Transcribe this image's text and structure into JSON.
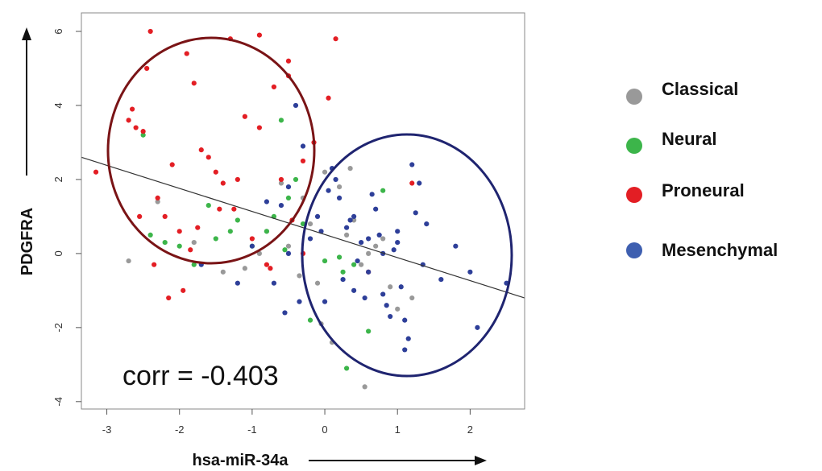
{
  "chart_data": {
    "type": "scatter",
    "xlabel": "hsa-miR-34a",
    "ylabel": "PDGFRA",
    "xlim": [
      -3.35,
      2.75
    ],
    "ylim": [
      -4.2,
      6.5
    ],
    "xticks": [
      -3,
      -2,
      -1,
      0,
      1,
      2
    ],
    "yticks": [
      -4,
      -2,
      0,
      2,
      4,
      6
    ],
    "grid": false,
    "legend_position": "right",
    "annotation": "corr = -0.403",
    "correlation": -0.403,
    "colors": {
      "Classical": "#999999",
      "Neural": "#3cb54a",
      "Proneural": "#e31e24",
      "Mesenchymal": "#2e3f99",
      "trend_line": "#333333",
      "circle_left": "#7a1416",
      "circle_right": "#1f2470"
    },
    "trend_line": {
      "x": [
        -3.35,
        2.75
      ],
      "y": [
        2.6,
        -1.2
      ]
    },
    "series": [
      {
        "name": "Classical",
        "x": [
          -2.3,
          -2.7,
          -1.8,
          -1.4,
          -0.9,
          -0.5,
          -0.3,
          -0.2,
          0.0,
          0.2,
          0.4,
          0.5,
          -0.1,
          0.3,
          0.6,
          0.8,
          1.0,
          1.2,
          -0.6,
          -0.8,
          0.1,
          0.7,
          -1.1,
          0.55,
          -0.05,
          0.9,
          0.35,
          -0.35
        ],
        "y": [
          1.4,
          -0.2,
          0.3,
          -0.5,
          0.0,
          0.2,
          1.5,
          0.8,
          2.2,
          1.8,
          0.9,
          -0.3,
          -0.8,
          0.5,
          0.0,
          0.4,
          -1.5,
          -1.2,
          1.9,
          0.6,
          -2.4,
          0.2,
          -0.4,
          -3.6,
          -1.9,
          -0.9,
          2.3,
          -0.6
        ]
      },
      {
        "name": "Neural",
        "x": [
          -2.4,
          -2.2,
          -2.0,
          -1.8,
          -1.5,
          -1.3,
          -1.2,
          -1.0,
          -0.8,
          -0.7,
          -0.5,
          -0.4,
          -0.3,
          -0.2,
          0.0,
          0.2,
          0.4,
          0.6,
          0.8,
          -2.5,
          -0.6,
          0.3,
          -1.6,
          -0.55,
          0.25
        ],
        "y": [
          0.5,
          0.3,
          0.2,
          -0.3,
          0.4,
          0.6,
          0.9,
          0.2,
          0.6,
          1.0,
          1.5,
          2.0,
          0.8,
          -1.8,
          -0.2,
          -0.1,
          -0.3,
          -2.1,
          1.7,
          3.2,
          3.6,
          -3.1,
          1.3,
          0.1,
          -0.5
        ]
      },
      {
        "name": "Proneural",
        "x": [
          -2.7,
          -2.6,
          -2.5,
          -2.3,
          -2.1,
          -1.9,
          -1.7,
          -1.5,
          -1.3,
          -1.1,
          -0.9,
          -0.7,
          -0.5,
          -0.3,
          -2.65,
          -2.4,
          -2.2,
          -2.0,
          -1.8,
          -1.6,
          -1.4,
          -1.2,
          -1.0,
          -0.8,
          -0.6,
          -2.45,
          -1.75,
          -1.25,
          -0.9,
          -0.5,
          -0.3,
          -0.15,
          0.05,
          0.15,
          -2.55,
          -2.15,
          -1.95,
          -0.75,
          -0.45,
          -1.45,
          -3.15,
          0.6,
          1.2,
          -2.35,
          -1.85
        ],
        "y": [
          3.6,
          3.4,
          3.3,
          1.5,
          2.4,
          5.4,
          2.8,
          2.2,
          5.8,
          3.7,
          5.9,
          4.5,
          5.2,
          2.5,
          3.9,
          6.0,
          1.0,
          0.6,
          4.6,
          2.6,
          1.9,
          2.0,
          0.4,
          -0.3,
          2.0,
          5.0,
          0.7,
          1.2,
          3.4,
          4.8,
          0.0,
          3.0,
          4.2,
          5.8,
          1.0,
          -1.2,
          -1.0,
          -0.4,
          0.9,
          1.2,
          2.2,
          -0.5,
          1.9,
          -0.3,
          0.1
        ]
      },
      {
        "name": "Mesenchymal",
        "x": [
          -1.7,
          -1.0,
          -0.7,
          -0.5,
          -0.3,
          -0.1,
          0.1,
          0.2,
          0.3,
          0.4,
          0.5,
          0.6,
          0.7,
          0.8,
          0.9,
          1.0,
          1.1,
          1.2,
          1.3,
          1.4,
          1.6,
          1.8,
          2.0,
          2.1,
          2.5,
          -0.6,
          -0.4,
          -0.2,
          0.0,
          0.15,
          0.35,
          0.45,
          0.55,
          0.65,
          0.75,
          0.85,
          0.95,
          1.05,
          1.15,
          1.25,
          1.35,
          0.25,
          0.05,
          -0.05,
          -0.8,
          -1.2,
          -0.35,
          -0.5,
          0.4,
          0.6,
          0.8,
          1.0,
          1.1,
          -0.55
        ],
        "y": [
          -0.3,
          0.2,
          -0.8,
          1.8,
          2.9,
          1.0,
          2.3,
          1.5,
          0.7,
          -1.0,
          0.3,
          -0.5,
          1.2,
          0.0,
          -1.7,
          0.6,
          -2.6,
          2.4,
          1.9,
          0.8,
          -0.7,
          0.2,
          -0.5,
          -2.0,
          -0.8,
          1.3,
          4.0,
          0.4,
          -1.3,
          2.0,
          0.9,
          -0.2,
          -1.2,
          1.6,
          0.5,
          -1.4,
          0.1,
          -0.9,
          -2.3,
          1.1,
          -0.3,
          -0.7,
          1.7,
          0.6,
          1.4,
          -0.8,
          -1.3,
          0.0,
          1.0,
          0.4,
          -1.1,
          0.3,
          -1.8,
          -1.6
        ]
      }
    ]
  }
}
